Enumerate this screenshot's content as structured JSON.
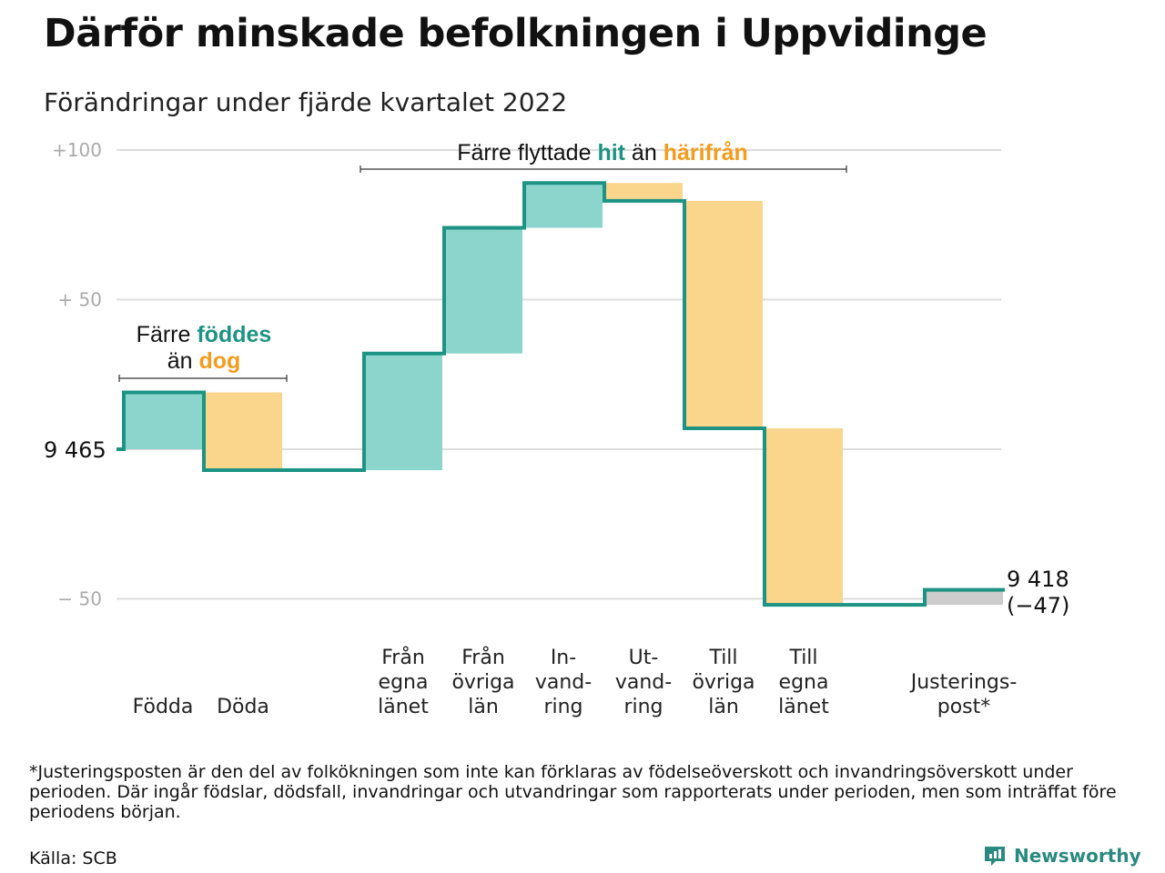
{
  "header": {
    "title": "Därför minskade befolkningen i Uppvidinge",
    "subtitle": "Förändringar under fjärde kvartalet 2022"
  },
  "colors": {
    "increase": "#8cd5cc",
    "decrease": "#fad58c",
    "adjustment": "#cccccc",
    "line": "#1c9383",
    "accent_teal": "#1c9383",
    "accent_orange": "#f39c1e",
    "grid": "#dddddd"
  },
  "chart_data": {
    "type": "waterfall",
    "start_value": 9465,
    "start_label": "9 465",
    "end_value": 9418,
    "end_label": "9 418",
    "end_change_label": "(−47)",
    "ylim": [
      -56,
      103
    ],
    "yticks": [
      {
        "value": 100,
        "label": "+100"
      },
      {
        "value": 50,
        "label": "+ 50"
      },
      {
        "value": 0,
        "label": ""
      },
      {
        "value": -50,
        "label": "− 50"
      }
    ],
    "steps": [
      {
        "label_lines": [
          "Födda"
        ],
        "change": 19,
        "slot": 0
      },
      {
        "label_lines": [
          "Döda"
        ],
        "change": -26,
        "slot": 1
      },
      {
        "label_lines": [
          "Från",
          "egna",
          "länet"
        ],
        "change": 39,
        "slot": 3
      },
      {
        "label_lines": [
          "Från",
          "övriga",
          "län"
        ],
        "change": 42,
        "slot": 4
      },
      {
        "label_lines": [
          "In-",
          "vand-",
          "ring"
        ],
        "change": 15,
        "slot": 5
      },
      {
        "label_lines": [
          "Ut-",
          "vand-",
          "ring"
        ],
        "change": -6,
        "slot": 6
      },
      {
        "label_lines": [
          "Till",
          "övriga",
          "län"
        ],
        "change": -76,
        "slot": 7
      },
      {
        "label_lines": [
          "Till",
          "egna",
          "länet"
        ],
        "change": -59,
        "slot": 8
      },
      {
        "label_lines": [
          "Justerings-",
          "post*"
        ],
        "change": 5,
        "slot": 10,
        "adjustment": true
      }
    ]
  },
  "annotations": {
    "births": {
      "line1_pre": "Färre ",
      "line1_hi": "föddes",
      "line2_pre": "än ",
      "line2_hi": "dog"
    },
    "moves": {
      "pre": "Färre flyttade ",
      "hi1": "hit",
      "mid": " än ",
      "hi2": "härifrån"
    }
  },
  "footer": {
    "footnote": "*Justeringsposten är den del av folkökningen som inte kan förklaras av födelseöverskott och invandringsöverskott under perioden. Där ingår födslar, dödsfall, invandringar och utvandringar som rapporterats under perioden, men som inträffat före periodens början.",
    "source": "Källa: SCB",
    "brand": "Newsworthy"
  }
}
